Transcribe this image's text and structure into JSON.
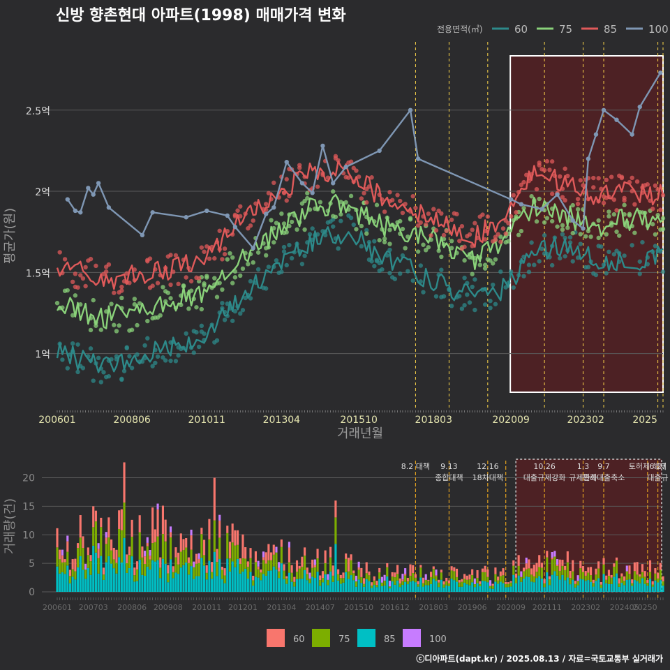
{
  "title": "신방 향촌현대 아파트(1998) 매매가격 변화",
  "footer": "ⓒ디아파트(dapt.kr) / 2025.08.13 / 자료=국토교통부 실거래가",
  "colors": {
    "line_60": "#2d8a8a",
    "line_75": "#8ad27a",
    "line_85": "#e05a5a",
    "line_100": "#7f97b4",
    "bar_60": "#f8766d",
    "bar_75": "#7cae00",
    "bar_85": "#00bfc4",
    "bar_100": "#c77cff",
    "background": "#2b2b2d",
    "highlight": "#5a1f22",
    "event_line": "#ffd84a"
  },
  "chart_data": [
    {
      "type": "line",
      "title": "신방 향촌현대 아파트(1998) 매매가격 변화",
      "xlabel": "거래년월",
      "ylabel": "평균가(원)",
      "x_ticks": [
        "200601",
        "200806",
        "201011",
        "201304",
        "201510",
        "201803",
        "202009",
        "202302",
        "2025"
      ],
      "y_ticks": [
        {
          "v": 1.0,
          "label": "1억"
        },
        {
          "v": 1.5,
          "label": "1.5억"
        },
        {
          "v": 2.0,
          "label": "2억"
        },
        {
          "v": 2.5,
          "label": "2.5억"
        }
      ],
      "ylim": [
        0.65,
        2.8
      ],
      "xlim": [
        "2006-01",
        "2025-08"
      ],
      "legend": {
        "title": "전용면적(㎡)",
        "position": "top-right",
        "items": [
          "60",
          "75",
          "85",
          "100"
        ]
      },
      "grid": true,
      "highlight_range": [
        "2020-12",
        "2025-08"
      ],
      "event_months": [
        "2017-08",
        "2018-09",
        "2019-12",
        "2021-10",
        "2023-01",
        "2023-09",
        "2025-06",
        "2025-08"
      ],
      "series": [
        {
          "name": "60",
          "anchors": [
            [
              "2006-01",
              1.0
            ],
            [
              "2007-06",
              0.93
            ],
            [
              "2008-06",
              0.95
            ],
            [
              "2009-06",
              1.05
            ],
            [
              "2010-06",
              1.08
            ],
            [
              "2011-01",
              1.15
            ],
            [
              "2012-01",
              1.35
            ],
            [
              "2013-04",
              1.58
            ],
            [
              "2014-06",
              1.72
            ],
            [
              "2015-06",
              1.75
            ],
            [
              "2016-06",
              1.6
            ],
            [
              "2017-06",
              1.52
            ],
            [
              "2018-06",
              1.43
            ],
            [
              "2019-06",
              1.35
            ],
            [
              "2020-06",
              1.4
            ],
            [
              "2021-06",
              1.6
            ],
            [
              "2022-06",
              1.68
            ],
            [
              "2023-06",
              1.58
            ],
            [
              "2024-06",
              1.57
            ],
            [
              "2025-08",
              1.6
            ]
          ]
        },
        {
          "name": "75",
          "anchors": [
            [
              "2006-01",
              1.3
            ],
            [
              "2007-06",
              1.22
            ],
            [
              "2008-06",
              1.25
            ],
            [
              "2009-06",
              1.32
            ],
            [
              "2010-06",
              1.35
            ],
            [
              "2011-01",
              1.42
            ],
            [
              "2012-01",
              1.6
            ],
            [
              "2013-04",
              1.78
            ],
            [
              "2014-06",
              1.92
            ],
            [
              "2015-06",
              1.9
            ],
            [
              "2016-06",
              1.8
            ],
            [
              "2017-06",
              1.75
            ],
            [
              "2018-06",
              1.68
            ],
            [
              "2019-06",
              1.58
            ],
            [
              "2020-06",
              1.68
            ],
            [
              "2021-06",
              1.92
            ],
            [
              "2022-06",
              1.85
            ],
            [
              "2023-06",
              1.78
            ],
            [
              "2024-06",
              1.83
            ],
            [
              "2025-08",
              1.82
            ]
          ]
        },
        {
          "name": "85",
          "anchors": [
            [
              "2006-01",
              1.55
            ],
            [
              "2007-06",
              1.45
            ],
            [
              "2008-06",
              1.48
            ],
            [
              "2009-06",
              1.52
            ],
            [
              "2010-06",
              1.55
            ],
            [
              "2011-01",
              1.62
            ],
            [
              "2012-01",
              1.82
            ],
            [
              "2013-04",
              2.0
            ],
            [
              "2014-06",
              2.13
            ],
            [
              "2015-06",
              2.12
            ],
            [
              "2016-06",
              1.98
            ],
            [
              "2017-06",
              1.88
            ],
            [
              "2018-06",
              1.8
            ],
            [
              "2019-06",
              1.72
            ],
            [
              "2020-06",
              1.8
            ],
            [
              "2021-06",
              2.12
            ],
            [
              "2022-06",
              2.05
            ],
            [
              "2023-06",
              1.97
            ],
            [
              "2024-06",
              2.0
            ],
            [
              "2025-08",
              1.98
            ]
          ]
        },
        {
          "name": "100",
          "points": [
            [
              "2006-05",
              1.95
            ],
            [
              "2006-08",
              1.88
            ],
            [
              "2006-10",
              1.87
            ],
            [
              "2007-01",
              2.02
            ],
            [
              "2007-03",
              1.98
            ],
            [
              "2007-05",
              2.05
            ],
            [
              "2007-09",
              1.9
            ],
            [
              "2008-10",
              1.73
            ],
            [
              "2009-02",
              1.87
            ],
            [
              "2010-03",
              1.84
            ],
            [
              "2010-11",
              1.88
            ],
            [
              "2011-07",
              1.85
            ],
            [
              "2011-10",
              1.78
            ],
            [
              "2012-05",
              1.65
            ],
            [
              "2012-10",
              1.86
            ],
            [
              "2013-01",
              1.9
            ],
            [
              "2013-06",
              2.18
            ],
            [
              "2013-12",
              2.05
            ],
            [
              "2014-04",
              1.99
            ],
            [
              "2014-08",
              2.28
            ],
            [
              "2014-12",
              2.05
            ],
            [
              "2015-05",
              2.15
            ],
            [
              "2016-06",
              2.25
            ],
            [
              "2017-06",
              2.5
            ],
            [
              "2017-09",
              2.2
            ],
            [
              "2020-09",
              1.95
            ],
            [
              "2021-01",
              1.92
            ],
            [
              "2021-09",
              1.89
            ],
            [
              "2022-03",
              1.98
            ],
            [
              "2022-09",
              1.82
            ],
            [
              "2023-01",
              1.77
            ],
            [
              "2023-03",
              2.2
            ],
            [
              "2023-06",
              2.35
            ],
            [
              "2023-09",
              2.5
            ],
            [
              "2024-02",
              2.44
            ],
            [
              "2024-08",
              2.35
            ],
            [
              "2024-11",
              2.52
            ],
            [
              "2025-07",
              2.73
            ]
          ]
        }
      ]
    },
    {
      "type": "bar",
      "xlabel": "",
      "ylabel": "거래량(건)",
      "x_ticks": [
        "200601",
        "200703",
        "200806",
        "200908",
        "201011",
        "201201",
        "201304",
        "201407",
        "201510",
        "201612",
        "201803",
        "201906",
        "202009",
        "202111",
        "202302",
        "202405",
        "20250"
      ],
      "y_ticks": [
        0,
        5,
        10,
        15,
        20
      ],
      "ylim": [
        0,
        23
      ],
      "stack_order": [
        "85",
        "75",
        "60",
        "100"
      ],
      "legend": {
        "position": "bottom",
        "items": [
          "60",
          "75",
          "85",
          "100"
        ]
      },
      "highlight_range": [
        "2020-12",
        "2025-08"
      ],
      "peaks": [
        [
          "2008-03",
          22.7
        ],
        [
          "2011-02",
          20.0
        ],
        [
          "2015-01",
          16.0
        ],
        [
          "2007-03",
          15.0
        ]
      ],
      "volume_profile": [
        [
          "2006-01",
          8
        ],
        [
          "2008-06",
          10
        ],
        [
          "2011-01",
          9
        ],
        [
          "2012-06",
          6
        ],
        [
          "2014-01",
          6
        ],
        [
          "2016-01",
          3.5
        ],
        [
          "2018-01",
          3
        ],
        [
          "2020-01",
          3
        ],
        [
          "2021-06",
          5
        ],
        [
          "2023-06",
          4
        ],
        [
          "2025-08",
          3.5
        ]
      ],
      "events": [
        {
          "month": "2017-08",
          "lines": [
            "8.2 대책"
          ]
        },
        {
          "month": "2018-09",
          "lines": [
            "9.13",
            "종합대책"
          ]
        },
        {
          "month": "2019-12",
          "lines": [
            "12.16",
            "18차대책"
          ]
        },
        {
          "month": "2020-07",
          "lines": []
        },
        {
          "month": "2021-10",
          "lines": [
            "10.26",
            "대출규제강화"
          ]
        },
        {
          "month": "2023-01",
          "lines": [
            "1.3",
            "규제완화"
          ]
        },
        {
          "month": "2023-09",
          "lines": [
            "9.7",
            "특례대출축소"
          ]
        },
        {
          "month": "2025-02",
          "lines": [
            "토허제 해제"
          ]
        },
        {
          "month": "2025-06",
          "lines": [
            "6.27",
            "대출규"
          ]
        }
      ]
    }
  ]
}
